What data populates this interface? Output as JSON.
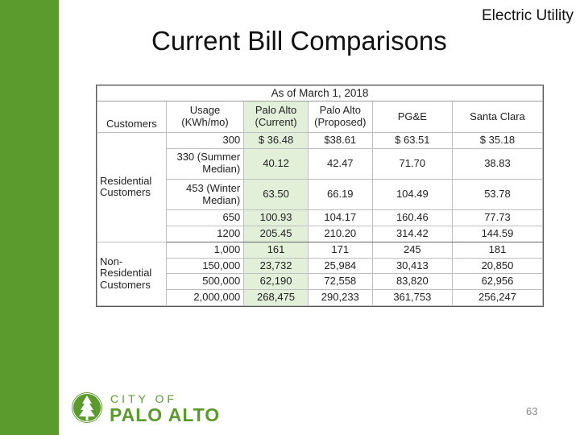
{
  "header": {
    "section_label": "Electric Utility",
    "title": "Current Bill Comparisons"
  },
  "table": {
    "caption": "As of March 1, 2018",
    "columns": {
      "customers": "Customers",
      "usage": "Usage (KWh/mo)",
      "palo_alto_current": "Palo Alto (Current)",
      "palo_alto_proposed": "Palo Alto (Proposed)",
      "pge": "PG&E",
      "santa_clara": "Santa Clara"
    },
    "residential": {
      "label": "Residential Customers",
      "rows": [
        {
          "usage": "300",
          "pa_current": "$ 36.48",
          "pa_proposed": "$38.61",
          "pge": "$ 63.51",
          "santa_clara": "$ 35.18"
        },
        {
          "usage": "330 (Summer Median)",
          "pa_current": "40.12",
          "pa_proposed": "42.47",
          "pge": "71.70",
          "santa_clara": "38.83"
        },
        {
          "usage": "453 (Winter Median)",
          "pa_current": "63.50",
          "pa_proposed": "66.19",
          "pge": "104.49",
          "santa_clara": "53.78"
        },
        {
          "usage": "650",
          "pa_current": "100.93",
          "pa_proposed": "104.17",
          "pge": "160.46",
          "santa_clara": "77.73"
        },
        {
          "usage": "1200",
          "pa_current": "205.45",
          "pa_proposed": "210.20",
          "pge": "314.42",
          "santa_clara": "144.59"
        }
      ]
    },
    "non_residential": {
      "label": "Non-Residential Customers",
      "rows": [
        {
          "usage": "1,000",
          "pa_current": "161",
          "pa_proposed": "171",
          "pge": "245",
          "santa_clara": "181"
        },
        {
          "usage": "150,000",
          "pa_current": "23,732",
          "pa_proposed": "25,984",
          "pge": "30,413",
          "santa_clara": "20,850"
        },
        {
          "usage": "500,000",
          "pa_current": "62,190",
          "pa_proposed": "72,558",
          "pge": "83,820",
          "santa_clara": "62,956"
        },
        {
          "usage": "2,000,000",
          "pa_current": "268,475",
          "pa_proposed": "290,233",
          "pge": "361,753",
          "santa_clara": "256,247"
        }
      ]
    }
  },
  "logo": {
    "city_text": "CITY OF",
    "name_text": "PALO ALTO",
    "icon": "tree-icon"
  },
  "footer": {
    "page_number": "63"
  },
  "colors": {
    "brand_green": "#5b9a2d",
    "cell_highlight": "#e2efd9"
  }
}
